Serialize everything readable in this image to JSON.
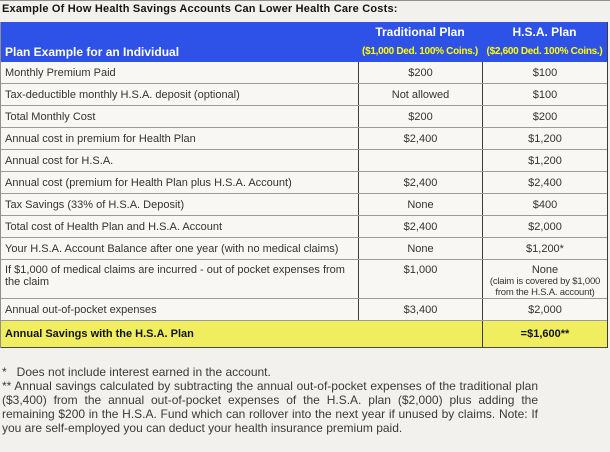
{
  "title": "Example Of How Health Savings Accounts Can Lower Health Care Costs:",
  "colors": {
    "header_background": "#2E52E8",
    "header_title_text": "#FFFFFF",
    "header_subtitle_text": "#FFFF00",
    "highlight_row_background": "#F0ED5F",
    "row_divider": "#9B9B9B",
    "column_divider": "#3C3C3C",
    "page_background": "#F2F1EE"
  },
  "header": {
    "row_label": "Plan Example for an Individual",
    "col1_name": "Traditional Plan",
    "col1_sub": "($1,000 Ded. 100% Coins.)",
    "col2_name": "H.S.A. Plan",
    "col2_sub": "($2,600 Ded. 100% Coins.)"
  },
  "rows": [
    {
      "label": "Monthly Premium Paid",
      "traditional": "$200",
      "hsa": "$100"
    },
    {
      "label": "Tax-deductible monthly H.S.A. deposit (optional)",
      "traditional": "Not allowed",
      "hsa": "$100"
    },
    {
      "label": "Total Monthly Cost",
      "traditional": "$200",
      "hsa": "$200"
    },
    {
      "label": "Annual cost in premium for Health Plan",
      "traditional": "$2,400",
      "hsa": "$1,200"
    },
    {
      "label": "Annual cost for H.S.A.",
      "traditional": "",
      "hsa": "$1,200"
    },
    {
      "label": "Annual cost (premium for Health Plan plus H.S.A. Account)",
      "traditional": "$2,400",
      "hsa": "$2,400"
    },
    {
      "label": "Tax Savings (33% of H.S.A. Deposit)",
      "traditional": "None",
      "hsa": "$400"
    },
    {
      "label": "Total cost of Health Plan and H.S.A. Account",
      "traditional": "$2,400",
      "hsa": "$2,000"
    },
    {
      "label": "Your H.S.A. Account Balance after one year (with no medical claims)",
      "traditional": "None",
      "hsa": "$1,200*"
    },
    {
      "label": "If $1,000 of medical claims are incurred - out of pocket expenses from the claim",
      "traditional": "$1,000",
      "hsa": "None",
      "hsa_note": "(claim is covered by $1,000 from the H.S.A. account)"
    },
    {
      "label": "Annual out-of-pocket expenses",
      "traditional": "$3,400",
      "hsa": "$2,000"
    }
  ],
  "savings_row": {
    "label": "Annual Savings with the H.S.A. Plan",
    "value": "=$1,600**"
  },
  "footnotes": [
    "*   Does not include interest earned in the account.",
    "** Annual savings calculated by subtracting the annual out-of-pocket expenses of the traditional plan ($3,400) from the annual out-of-pocket expenses of the H.S.A. plan ($2,000) plus adding the remaining $200 in the H.S.A. Fund which can rollover into the next year if unused by claims. Note: If you are self-employed you can deduct your health insurance premium paid."
  ]
}
